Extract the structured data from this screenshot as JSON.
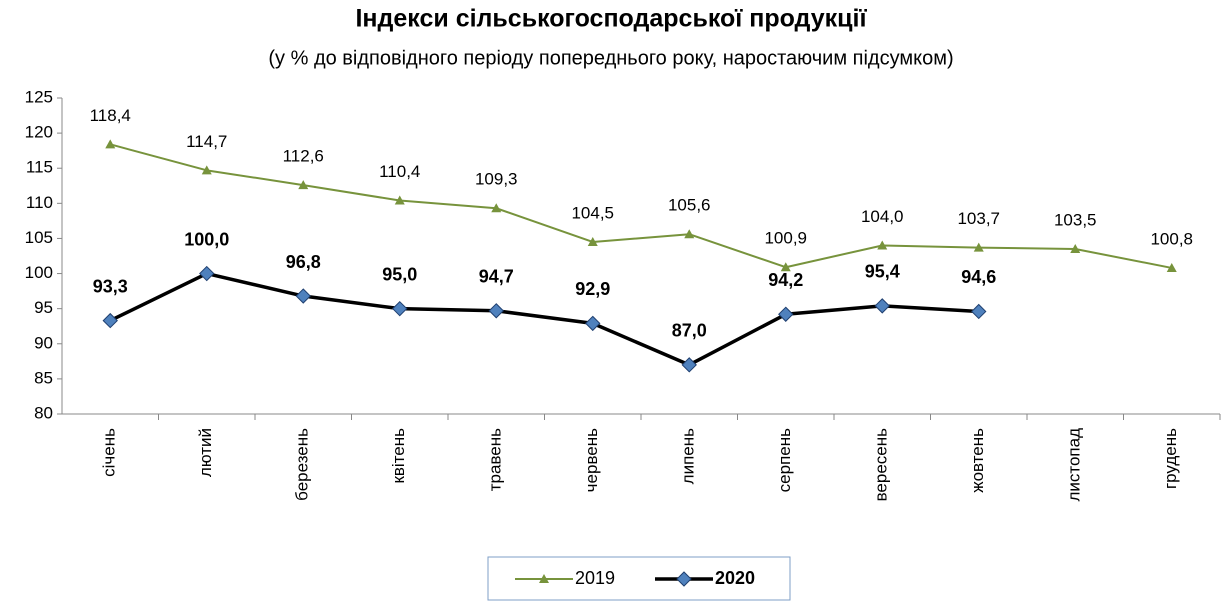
{
  "chart_data": {
    "type": "line",
    "title": "Індекси сільськогосподарської продукції",
    "subtitle": "(у % до відповідного періоду попереднього року, наростаючим підсумком)",
    "categories": [
      "січень",
      "лютий",
      "березень",
      "квітень",
      "травень",
      "червень",
      "липень",
      "серпень",
      "вересень",
      "жовтень",
      "листопад",
      "грудень"
    ],
    "series": [
      {
        "name": "2019",
        "color": "#77933c",
        "marker": "triangle",
        "values": [
          118.4,
          114.7,
          112.6,
          110.4,
          109.3,
          104.5,
          105.6,
          100.9,
          104.0,
          103.7,
          103.5,
          100.8
        ],
        "value_labels": [
          "118,4",
          "114,7",
          "112,6",
          "110,4",
          "109,3",
          "104,5",
          "105,6",
          "100,9",
          "104,0",
          "103,7",
          "103,5",
          "100,8"
        ]
      },
      {
        "name": "2020",
        "color": "#000000",
        "marker": "diamond",
        "marker_color": "#4f81bd",
        "values": [
          93.3,
          100.0,
          96.8,
          95.0,
          94.7,
          92.9,
          87.0,
          94.2,
          95.4,
          94.6,
          null,
          null
        ],
        "value_labels": [
          "93,3",
          "100,0",
          "96,8",
          "95,0",
          "94,7",
          "92,9",
          "87,0",
          "94,2",
          "95,4",
          "94,6",
          null,
          null
        ]
      }
    ],
    "ylim": [
      80,
      125
    ],
    "yticks": [
      80,
      85,
      90,
      95,
      100,
      105,
      110,
      115,
      120,
      125
    ],
    "grid": false,
    "legend": "bottom"
  }
}
